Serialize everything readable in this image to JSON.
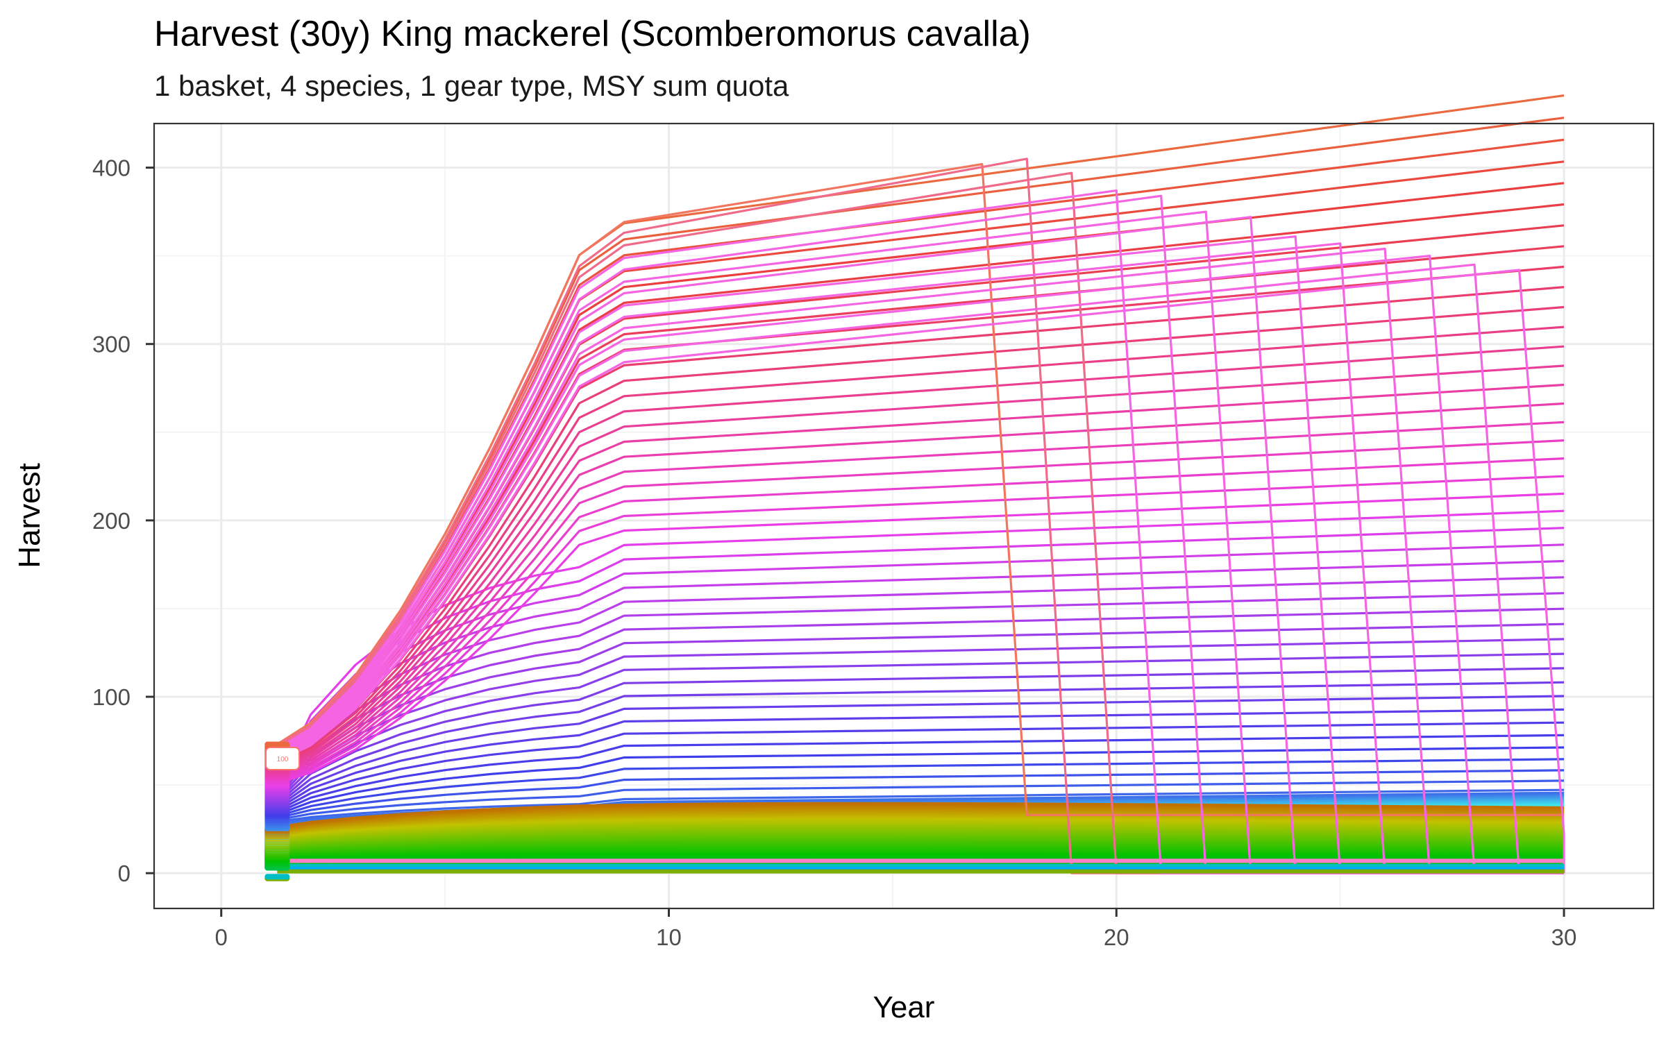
{
  "title": "Harvest (30y) King mackerel (Scomberomorus cavalla)",
  "subtitle": "1 basket, 4 species, 1 gear type, MSY sum quota",
  "chart_data": {
    "type": "line",
    "xlabel": "Year",
    "ylabel": "Harvest",
    "xlim": [
      -1.5,
      32
    ],
    "ylim": [
      -20,
      425
    ],
    "x_ticks": [
      0,
      10,
      20,
      30
    ],
    "y_ticks": [
      0,
      100,
      200,
      300,
      400
    ],
    "grid": true,
    "legend": "none",
    "start_tag_label": "100",
    "upper_family": {
      "description_of_series": "rising harvest trajectories, each with its own final level",
      "count": 60,
      "years": [
        1,
        2,
        3,
        4,
        5,
        6,
        7,
        8,
        9,
        10,
        11,
        12,
        13,
        14,
        15,
        16,
        17,
        18,
        19,
        20,
        21,
        22,
        23,
        24,
        25,
        26,
        27,
        28,
        29,
        30
      ],
      "series_levels": {
        "first_year_range": [
          13,
          73
        ],
        "peak_year_range": [
          30,
          325
        ],
        "final_range": [
          30,
          402
        ]
      }
    },
    "collapse_series": [
      {
        "drop_year": 17,
        "peak": 402,
        "to": 33,
        "then": "flat"
      },
      {
        "drop_year": 18,
        "peak": 405,
        "to": 0,
        "then": "flat"
      },
      {
        "drop_year": 19,
        "peak": 397,
        "to": 0,
        "then": "flat"
      },
      {
        "drop_year": 20,
        "peak": 387,
        "to": 0,
        "then": "flat"
      },
      {
        "drop_year": 21,
        "peak": 384,
        "to": 0,
        "then": "flat"
      },
      {
        "drop_year": 22,
        "peak": 375,
        "to": 0,
        "then": "flat"
      },
      {
        "drop_year": 23,
        "peak": 372,
        "to": 0,
        "then": "flat"
      },
      {
        "drop_year": 24,
        "peak": 361,
        "to": 0,
        "then": "flat"
      },
      {
        "drop_year": 25,
        "peak": 357,
        "to": 0,
        "then": "flat"
      },
      {
        "drop_year": 26,
        "peak": 354,
        "to": 0,
        "then": "flat"
      },
      {
        "drop_year": 27,
        "peak": 350,
        "to": 0,
        "then": "flat"
      },
      {
        "drop_year": 28,
        "peak": 345,
        "to": 0,
        "then": "flat"
      },
      {
        "drop_year": 29,
        "peak": 342,
        "to": 22,
        "then": "to 0 at 30"
      }
    ],
    "lower_family": {
      "count": 110,
      "value_range": [
        2,
        42
      ],
      "colors": "green to orange"
    },
    "baseline_series": [
      {
        "value": 7,
        "color": "#FF7FC8"
      },
      {
        "value": 4,
        "color": "#00BFC4"
      },
      {
        "value": 2.2,
        "color": "#00A9FF"
      },
      {
        "value": 1,
        "color": "#7CAE00"
      }
    ]
  }
}
